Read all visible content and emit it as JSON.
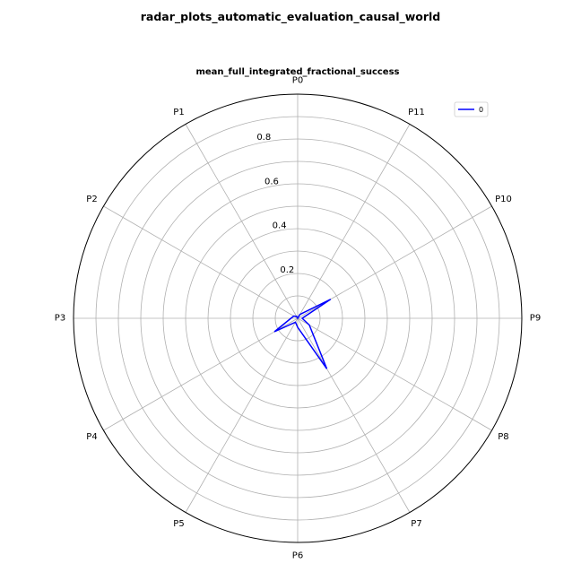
{
  "chart_data": {
    "type": "radar",
    "suptitle": "radar_plots_automatic_evaluation_causal_world",
    "title": "mean_full_integrated_fractional_success",
    "categories": [
      "P0",
      "P1",
      "P2",
      "P3",
      "P4",
      "P5",
      "P6",
      "P7",
      "P8",
      "P9",
      "P10",
      "P11"
    ],
    "radial_ticks": [
      "0.2",
      "0.4",
      "0.6",
      "0.8"
    ],
    "rlim": [
      0,
      1.0
    ],
    "grid": true,
    "legend_position": "top-right",
    "series": [
      {
        "name": "0",
        "color": "#0000ff",
        "values": [
          0.0,
          0.01,
          0.02,
          0.03,
          0.12,
          0.02,
          0.04,
          0.26,
          0.06,
          0.02,
          0.17,
          0.02
        ]
      }
    ]
  }
}
